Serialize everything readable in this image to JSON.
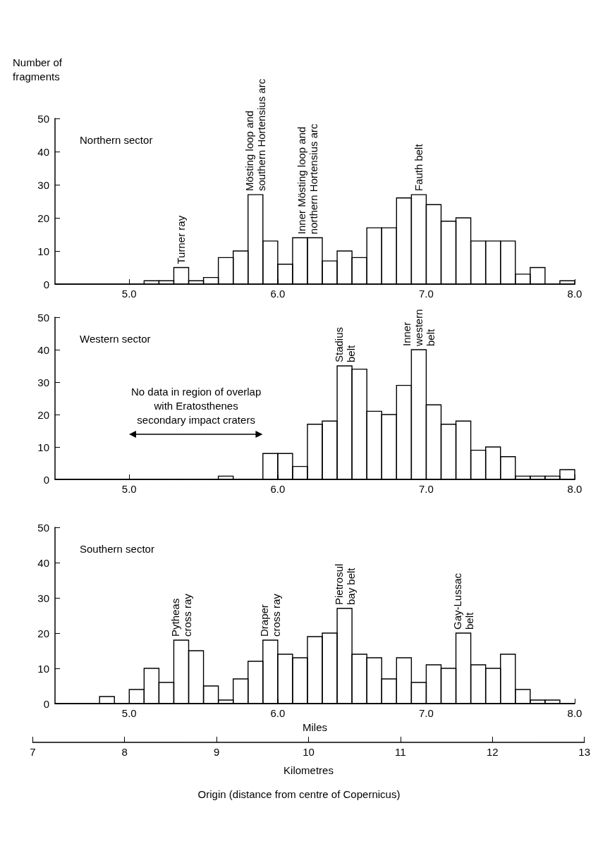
{
  "chart_data": [
    {
      "type": "histogram",
      "title": "Northern sector",
      "ylabel": "Number of\nfragments",
      "bins": [
        4.5,
        4.6,
        4.7,
        4.8,
        4.9,
        5.0,
        5.1,
        5.2,
        5.3,
        5.4,
        5.5,
        5.6,
        5.7,
        5.8,
        5.9,
        6.0,
        6.1,
        6.2,
        6.3,
        6.4,
        6.5,
        6.6,
        6.7,
        6.8,
        6.9,
        7.0,
        7.1,
        7.2,
        7.3,
        7.4,
        7.5,
        7.6,
        7.7,
        7.8,
        7.9,
        8.0
      ],
      "values": [
        0,
        0,
        0,
        0,
        0,
        0,
        1,
        1,
        5,
        1,
        2,
        8,
        10,
        27,
        13,
        6,
        14,
        14,
        7,
        10,
        8,
        17,
        17,
        26,
        27,
        24,
        19,
        20,
        13,
        13,
        13,
        3,
        5,
        0,
        1
      ],
      "color": "#000000",
      "xlim": [
        4.5,
        8.0
      ],
      "xticks": [
        {
          "value": 5,
          "label": "5.0"
        },
        {
          "value": 6,
          "label": "6.0"
        },
        {
          "value": 7,
          "label": "7.0"
        },
        {
          "value": 8,
          "label": "8.0"
        }
      ],
      "ylim": [
        0,
        50
      ],
      "yticks": [
        0,
        10,
        20,
        30,
        40,
        50
      ],
      "annotations": [
        {
          "text": "Turner ray",
          "x": 5.35,
          "y": 5
        },
        {
          "text": "Mösting loop and\nsouthern Hortensius arc",
          "x": 5.85,
          "y": 27
        },
        {
          "text": "Inner Mösting loop and\nnorthern Hortensius arc",
          "x": 6.2,
          "y": 14
        },
        {
          "text": "Fauth belt",
          "x": 6.95,
          "y": 27
        }
      ]
    },
    {
      "type": "histogram",
      "title": "Western sector",
      "bins": [
        4.5,
        4.6,
        4.7,
        4.8,
        4.9,
        5.0,
        5.1,
        5.2,
        5.3,
        5.4,
        5.5,
        5.6,
        5.7,
        5.8,
        5.9,
        6.0,
        6.1,
        6.2,
        6.3,
        6.4,
        6.5,
        6.6,
        6.7,
        6.8,
        6.9,
        7.0,
        7.1,
        7.2,
        7.3,
        7.4,
        7.5,
        7.6,
        7.7,
        7.8,
        7.9,
        8.0
      ],
      "values": [
        0,
        0,
        0,
        0,
        0,
        0,
        0,
        0,
        0,
        0,
        0,
        1,
        0,
        0,
        8,
        8,
        4,
        17,
        18,
        35,
        34,
        21,
        20,
        29,
        40,
        23,
        17,
        18,
        9,
        10,
        7,
        1,
        1,
        1,
        3
      ],
      "color": "#000000",
      "xlim": [
        4.5,
        8.0
      ],
      "xticks": [
        {
          "value": 5,
          "label": "5.0"
        },
        {
          "value": 6,
          "label": "6.0"
        },
        {
          "value": 7,
          "label": "7.0"
        },
        {
          "value": 8,
          "label": "8.0"
        }
      ],
      "ylim": [
        0,
        50
      ],
      "yticks": [
        0,
        10,
        20,
        30,
        40,
        50
      ],
      "annotations": [
        {
          "text": "Stadius\nbelt",
          "x": 6.45,
          "y": 35
        },
        {
          "text": "Inner\nwestern\nbelt",
          "x": 6.95,
          "y": 40
        },
        "No data in region of overlap\nwith Eratosthenes\nsecondary impact craters"
      ]
    },
    {
      "type": "histogram",
      "title": "Southern sector",
      "xlabel": "Miles",
      "x2label": "Kilometres",
      "bins": [
        4.5,
        4.6,
        4.7,
        4.8,
        4.9,
        5.0,
        5.1,
        5.2,
        5.3,
        5.4,
        5.5,
        5.6,
        5.7,
        5.8,
        5.9,
        6.0,
        6.1,
        6.2,
        6.3,
        6.4,
        6.5,
        6.6,
        6.7,
        6.8,
        6.9,
        7.0,
        7.1,
        7.2,
        7.3,
        7.4,
        7.5,
        7.6,
        7.7,
        7.8,
        7.9,
        8.0
      ],
      "values": [
        0,
        0,
        0,
        2,
        0,
        4,
        10,
        6,
        18,
        15,
        5,
        1,
        7,
        12,
        18,
        14,
        13,
        19,
        20,
        27,
        14,
        13,
        7,
        13,
        6,
        11,
        10,
        20,
        11,
        10,
        14,
        4,
        1,
        1,
        0
      ],
      "color": "#000000",
      "xlim": [
        4.5,
        8.0
      ],
      "xticks": [
        {
          "value": 5,
          "label": "5.0"
        },
        {
          "value": 6,
          "label": "6.0"
        },
        {
          "value": 7,
          "label": "7.0"
        },
        {
          "value": 8,
          "label": "8.0"
        }
      ],
      "ylim": [
        0,
        50
      ],
      "yticks": [
        0,
        10,
        20,
        30,
        40,
        50
      ],
      "x2lim": [
        7,
        13
      ],
      "x2ticks": [
        7,
        8,
        9,
        10,
        11,
        12,
        13
      ],
      "annotations": [
        {
          "text": "Pytheas\ncross ray",
          "x": 5.35,
          "y": 18
        },
        {
          "text": "Draper\ncross ray",
          "x": 5.95,
          "y": 18
        },
        {
          "text": "Pietrosul\nbay belt",
          "x": 6.45,
          "y": 27
        },
        {
          "text": "Gay-Lussac\nbelt",
          "x": 7.25,
          "y": 20
        },
        "Origin (distance from centre of Copernicus)"
      ]
    }
  ]
}
